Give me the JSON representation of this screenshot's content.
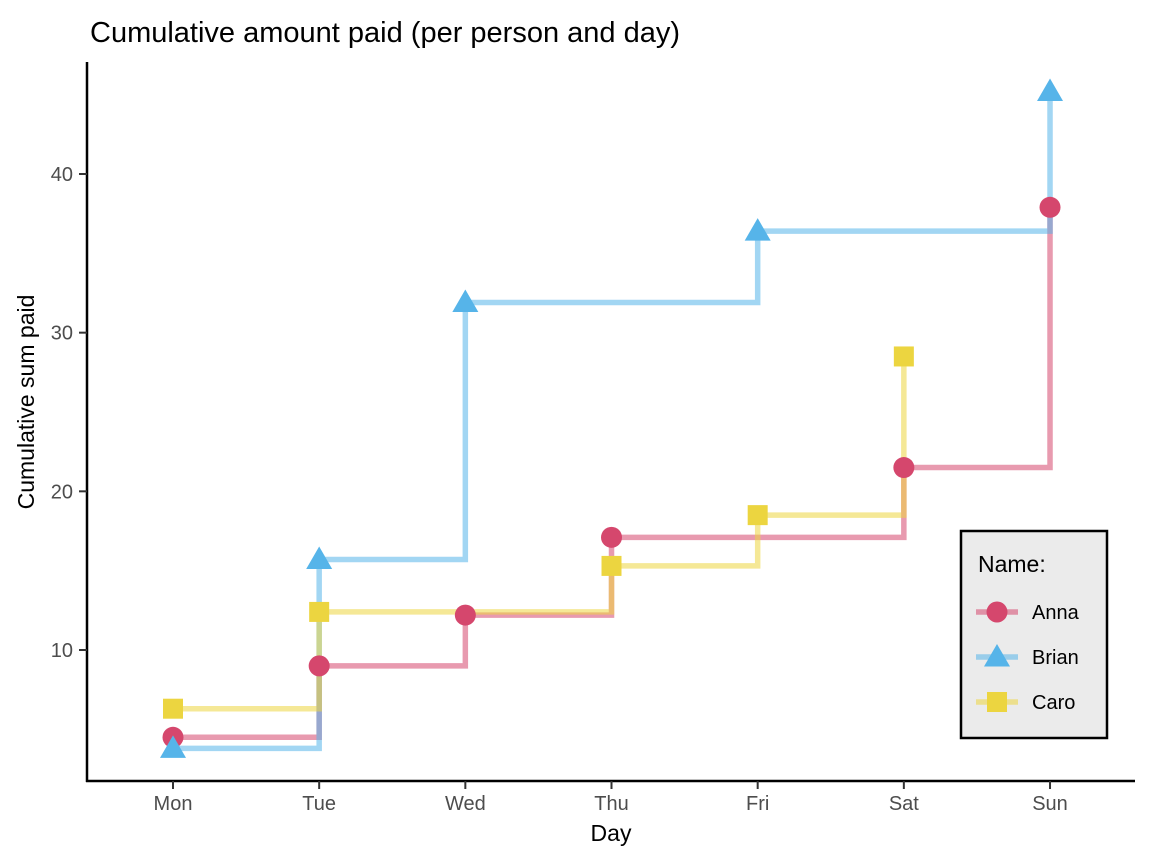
{
  "window": {
    "kind": "rendered-plot",
    "background": "#ffffff"
  },
  "chart_data": {
    "type": "step",
    "title": "Cumulative amount paid (per person and day)",
    "xlabel": "Day",
    "ylabel": "Cumulative sum paid",
    "categories": [
      "Mon",
      "Tue",
      "Wed",
      "Thu",
      "Fri",
      "Sat",
      "Sun"
    ],
    "y_ticks": [
      10,
      20,
      30,
      40
    ],
    "ylim": [
      1.7,
      47
    ],
    "grid": "off",
    "panel_background": "#ffffff",
    "axis_line_color": "#000000",
    "tick_label_color": "#4d4d4d",
    "line_opacity": 0.55,
    "legend": {
      "title": "Name:",
      "position": "inside-bottom-right",
      "background": "#ebebeb",
      "border_color": "#000000"
    },
    "series": [
      {
        "name": "Anna",
        "color": "#d5476d",
        "marker": "circle",
        "points": [
          {
            "day": "Mon",
            "value": 4.5
          },
          {
            "day": "Tue",
            "value": 9.0
          },
          {
            "day": "Wed",
            "value": 12.2
          },
          {
            "day": "Thu",
            "value": 17.1
          },
          {
            "day": "Sat",
            "value": 21.5
          },
          {
            "day": "Sun",
            "value": 37.9
          }
        ]
      },
      {
        "name": "Brian",
        "color": "#56b4e9",
        "marker": "triangle",
        "points": [
          {
            "day": "Mon",
            "value": 3.8
          },
          {
            "day": "Tue",
            "value": 15.7
          },
          {
            "day": "Wed",
            "value": 31.9
          },
          {
            "day": "Fri",
            "value": 36.4
          },
          {
            "day": "Sun",
            "value": 45.2
          }
        ]
      },
      {
        "name": "Caro",
        "color": "#ecd540",
        "marker": "square",
        "points": [
          {
            "day": "Mon",
            "value": 6.3
          },
          {
            "day": "Tue",
            "value": 12.4
          },
          {
            "day": "Thu",
            "value": 15.3
          },
          {
            "day": "Fri",
            "value": 18.5
          },
          {
            "day": "Sat",
            "value": 28.5
          }
        ]
      }
    ]
  }
}
